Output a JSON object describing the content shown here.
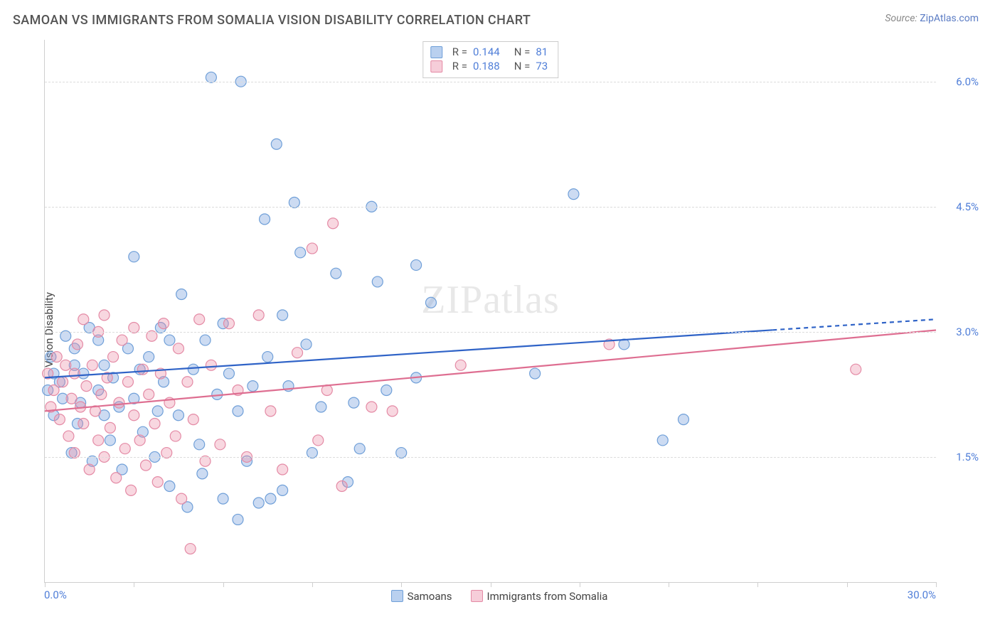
{
  "header": {
    "title": "SAMOAN VS IMMIGRANTS FROM SOMALIA VISION DISABILITY CORRELATION CHART",
    "source_prefix": "Source: ",
    "source_link": "ZipAtlas.com"
  },
  "chart": {
    "type": "scatter",
    "y_axis_label": "Vision Disability",
    "xlim": [
      0,
      30
    ],
    "ylim": [
      0,
      6.5
    ],
    "x_tick_positions": [
      0,
      3,
      6,
      9,
      12,
      15,
      18,
      21,
      24,
      27,
      30
    ],
    "x_min_label": "0.0%",
    "x_max_label": "30.0%",
    "y_gridlines": [
      1.5,
      3.0,
      4.5,
      6.0
    ],
    "y_tick_labels": [
      "1.5%",
      "3.0%",
      "4.5%",
      "6.0%"
    ],
    "background_color": "#ffffff",
    "grid_color": "#dcdcdc",
    "axis_color": "#cfcfcf",
    "tick_label_color": "#4f7ed8",
    "watermark_text": "ZIPatlas",
    "series": [
      {
        "name": "Samoans",
        "color_fill": "rgba(120,160,220,0.38)",
        "color_stroke": "#6f9fd8",
        "legend_swatch_fill": "#b9d0ef",
        "legend_swatch_border": "#6f9fd8",
        "R": "0.144",
        "N": "81",
        "trend": {
          "x1": 0,
          "y1": 2.45,
          "x2": 30,
          "y2": 3.15,
          "dash_from_x": 24.5
        },
        "trend_color": "#2f63c7",
        "points": [
          [
            0.1,
            2.3
          ],
          [
            0.2,
            2.7
          ],
          [
            0.3,
            2.5
          ],
          [
            0.3,
            2.0
          ],
          [
            0.5,
            2.4
          ],
          [
            0.6,
            2.2
          ],
          [
            0.7,
            2.95
          ],
          [
            0.9,
            1.55
          ],
          [
            1.0,
            2.8
          ],
          [
            1.0,
            2.6
          ],
          [
            1.1,
            1.9
          ],
          [
            1.2,
            2.15
          ],
          [
            1.3,
            2.5
          ],
          [
            1.5,
            3.05
          ],
          [
            1.6,
            1.45
          ],
          [
            1.8,
            2.9
          ],
          [
            1.8,
            2.3
          ],
          [
            2.0,
            2.0
          ],
          [
            2.0,
            2.6
          ],
          [
            2.2,
            1.7
          ],
          [
            2.3,
            2.45
          ],
          [
            2.5,
            2.1
          ],
          [
            2.6,
            1.35
          ],
          [
            2.8,
            2.8
          ],
          [
            3.0,
            3.9
          ],
          [
            3.0,
            2.2
          ],
          [
            3.2,
            2.55
          ],
          [
            3.3,
            1.8
          ],
          [
            3.5,
            2.7
          ],
          [
            3.7,
            1.5
          ],
          [
            3.8,
            2.05
          ],
          [
            3.9,
            3.05
          ],
          [
            4.0,
            2.4
          ],
          [
            4.2,
            1.15
          ],
          [
            4.2,
            2.9
          ],
          [
            4.5,
            2.0
          ],
          [
            4.6,
            3.45
          ],
          [
            4.8,
            0.9
          ],
          [
            5.0,
            2.55
          ],
          [
            5.2,
            1.65
          ],
          [
            5.3,
            1.3
          ],
          [
            5.4,
            2.9
          ],
          [
            5.6,
            6.05
          ],
          [
            5.8,
            2.25
          ],
          [
            6.0,
            3.1
          ],
          [
            6.0,
            1.0
          ],
          [
            6.2,
            2.5
          ],
          [
            6.5,
            0.75
          ],
          [
            6.5,
            2.05
          ],
          [
            6.6,
            6.0
          ],
          [
            6.8,
            1.45
          ],
          [
            7.0,
            2.35
          ],
          [
            7.2,
            0.95
          ],
          [
            7.4,
            4.35
          ],
          [
            7.5,
            2.7
          ],
          [
            7.6,
            1.0
          ],
          [
            7.8,
            5.25
          ],
          [
            8.0,
            3.2
          ],
          [
            8.0,
            1.1
          ],
          [
            8.2,
            2.35
          ],
          [
            8.4,
            4.55
          ],
          [
            8.6,
            3.95
          ],
          [
            8.8,
            2.85
          ],
          [
            9.0,
            1.55
          ],
          [
            9.3,
            2.1
          ],
          [
            9.8,
            3.7
          ],
          [
            10.2,
            1.2
          ],
          [
            10.4,
            2.15
          ],
          [
            10.6,
            1.6
          ],
          [
            11.0,
            4.5
          ],
          [
            11.2,
            3.6
          ],
          [
            11.5,
            2.3
          ],
          [
            12.0,
            1.55
          ],
          [
            12.5,
            2.45
          ],
          [
            12.5,
            3.8
          ],
          [
            13.0,
            3.35
          ],
          [
            16.5,
            2.5
          ],
          [
            17.8,
            4.65
          ],
          [
            19.5,
            2.85
          ],
          [
            20.8,
            1.7
          ],
          [
            21.5,
            1.95
          ]
        ]
      },
      {
        "name": "Immigrants from Somalia",
        "color_fill": "rgba(235,140,165,0.35)",
        "color_stroke": "#e48aa5",
        "legend_swatch_fill": "#f6cdd9",
        "legend_swatch_border": "#e48aa5",
        "R": "0.188",
        "N": "73",
        "trend": {
          "x1": 0,
          "y1": 2.05,
          "x2": 30,
          "y2": 3.02,
          "dash_from_x": 30
        },
        "trend_color": "#de6e91",
        "points": [
          [
            0.1,
            2.5
          ],
          [
            0.2,
            2.1
          ],
          [
            0.3,
            2.3
          ],
          [
            0.4,
            2.7
          ],
          [
            0.5,
            1.95
          ],
          [
            0.6,
            2.4
          ],
          [
            0.7,
            2.6
          ],
          [
            0.8,
            1.75
          ],
          [
            0.9,
            2.2
          ],
          [
            1.0,
            2.5
          ],
          [
            1.0,
            1.55
          ],
          [
            1.1,
            2.85
          ],
          [
            1.2,
            2.1
          ],
          [
            1.3,
            1.9
          ],
          [
            1.3,
            3.15
          ],
          [
            1.4,
            2.35
          ],
          [
            1.5,
            1.35
          ],
          [
            1.6,
            2.6
          ],
          [
            1.7,
            2.05
          ],
          [
            1.8,
            1.7
          ],
          [
            1.8,
            3.0
          ],
          [
            1.9,
            2.25
          ],
          [
            2.0,
            1.5
          ],
          [
            2.0,
            3.2
          ],
          [
            2.1,
            2.45
          ],
          [
            2.2,
            1.85
          ],
          [
            2.3,
            2.7
          ],
          [
            2.4,
            1.25
          ],
          [
            2.5,
            2.15
          ],
          [
            2.6,
            2.9
          ],
          [
            2.7,
            1.6
          ],
          [
            2.8,
            2.4
          ],
          [
            2.9,
            1.1
          ],
          [
            3.0,
            2.0
          ],
          [
            3.0,
            3.05
          ],
          [
            3.2,
            1.7
          ],
          [
            3.3,
            2.55
          ],
          [
            3.4,
            1.4
          ],
          [
            3.5,
            2.25
          ],
          [
            3.6,
            2.95
          ],
          [
            3.7,
            1.9
          ],
          [
            3.8,
            1.2
          ],
          [
            3.9,
            2.5
          ],
          [
            4.0,
            3.1
          ],
          [
            4.1,
            1.55
          ],
          [
            4.2,
            2.15
          ],
          [
            4.4,
            1.75
          ],
          [
            4.5,
            2.8
          ],
          [
            4.6,
            1.0
          ],
          [
            4.8,
            2.4
          ],
          [
            4.9,
            0.4
          ],
          [
            5.0,
            1.95
          ],
          [
            5.2,
            3.15
          ],
          [
            5.4,
            1.45
          ],
          [
            5.6,
            2.6
          ],
          [
            5.9,
            1.65
          ],
          [
            6.2,
            3.1
          ],
          [
            6.5,
            2.3
          ],
          [
            6.8,
            1.5
          ],
          [
            7.2,
            3.2
          ],
          [
            7.6,
            2.05
          ],
          [
            8.0,
            1.35
          ],
          [
            8.5,
            2.75
          ],
          [
            9.0,
            4.0
          ],
          [
            9.2,
            1.7
          ],
          [
            9.5,
            2.3
          ],
          [
            9.7,
            4.3
          ],
          [
            10.0,
            1.15
          ],
          [
            11.0,
            2.1
          ],
          [
            11.7,
            2.05
          ],
          [
            14.0,
            2.6
          ],
          [
            19.0,
            2.85
          ],
          [
            27.3,
            2.55
          ]
        ]
      }
    ],
    "legend_bottom": {
      "items": [
        "Samoans",
        "Immigrants from Somalia"
      ]
    }
  }
}
